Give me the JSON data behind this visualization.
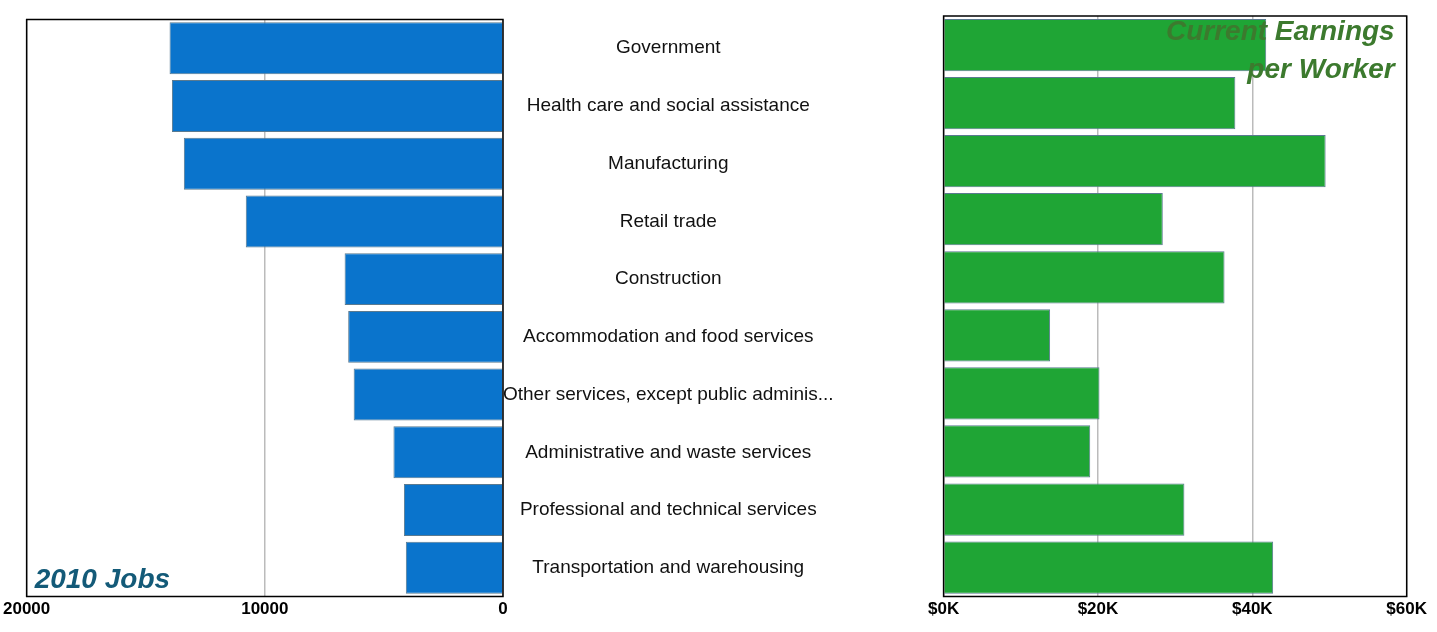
{
  "chart_data": [
    {
      "type": "bar",
      "orientation": "horizontal",
      "title": "2010 Jobs",
      "categories": [
        "Government",
        "Health care and social assistance",
        "Manufacturing",
        "Retail trade",
        "Construction",
        "Accommodation and food services",
        "Other services, except public adminis...",
        "Administrative and waste services",
        "Professional and technical services",
        "Transportation and warehousing"
      ],
      "values": [
        14000,
        13900,
        13400,
        10800,
        6650,
        6500,
        6270,
        4600,
        4160,
        4080
      ],
      "color": "#0a74cc",
      "xlim": [
        20000,
        0
      ],
      "xticks": [
        20000,
        10000,
        0
      ],
      "grid": "x"
    },
    {
      "type": "bar",
      "orientation": "horizontal",
      "title": "Current Earnings per Worker",
      "values": [
        41.8,
        37.8,
        49.5,
        28.4,
        36.4,
        13.8,
        20.2,
        19.0,
        31.2,
        42.7
      ],
      "color": "#1fa535",
      "xlim": [
        0,
        60
      ],
      "xticks": [
        {
          "value": 0,
          "label": "$0K"
        },
        {
          "value": 20,
          "label": "$20K"
        },
        {
          "value": 40,
          "label": "$40K"
        },
        {
          "value": 60,
          "label": "$60K"
        }
      ],
      "grid": "x",
      "tick_labels": "x"
    }
  ]
}
